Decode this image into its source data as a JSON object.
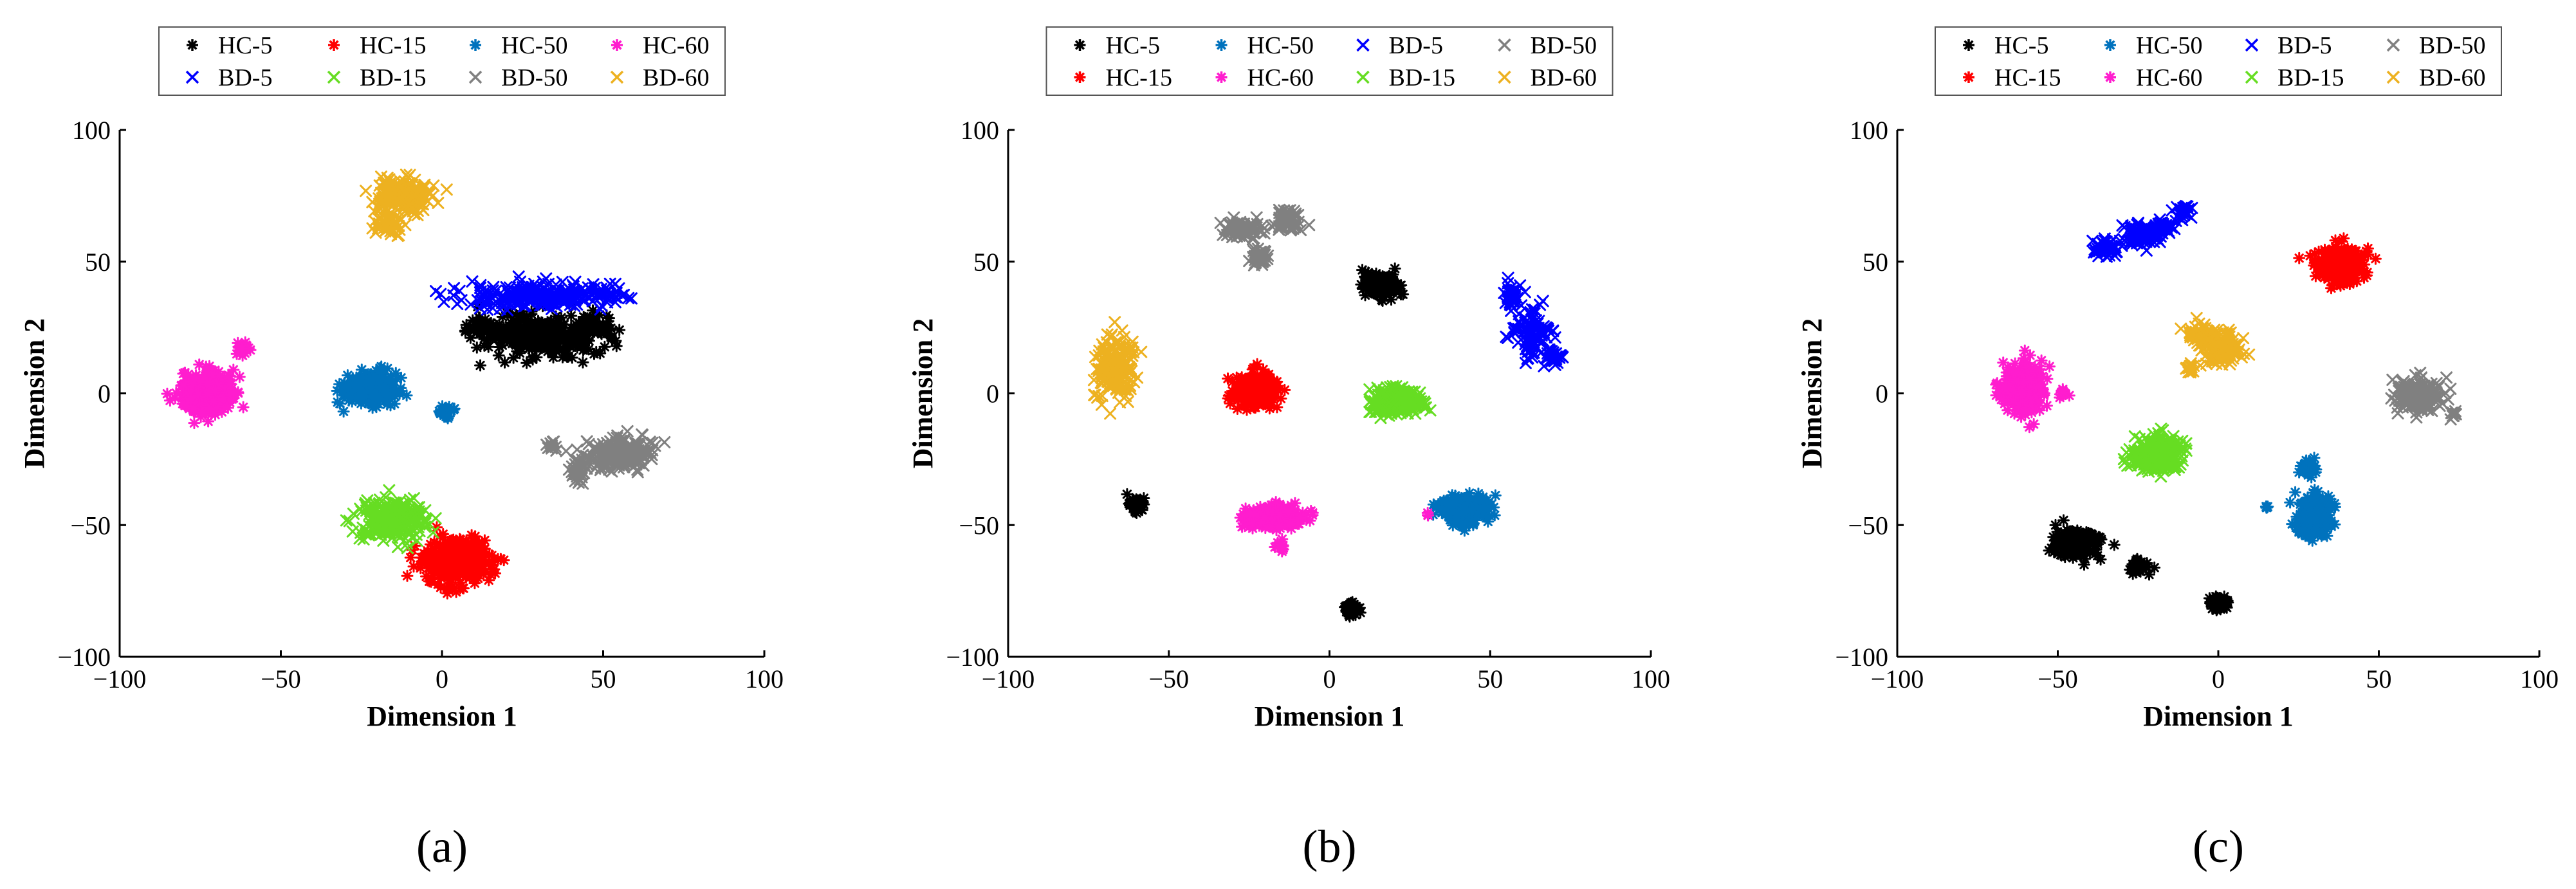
{
  "chart_data": [
    {
      "type": "scatter",
      "panel_label": "(a)",
      "xlabel": "Dimension 1",
      "ylabel": "Dimension 2",
      "xlim": [
        -100,
        100
      ],
      "ylim": [
        -100,
        100
      ],
      "xticks": [
        -100,
        -50,
        0,
        50,
        100
      ],
      "yticks": [
        -100,
        -50,
        0,
        50,
        100
      ],
      "legend_columns": 4,
      "legend_order": [
        "HC-5",
        "HC-15",
        "HC-50",
        "HC-60",
        "BD-5",
        "BD-15",
        "BD-50",
        "BD-60"
      ],
      "series": [
        {
          "name": "HC-5",
          "marker": "asterisk",
          "color": "#000000",
          "clusters": [
            {
              "x": 30,
              "y": 22,
              "sx": 9,
              "sy": 4,
              "n": 320
            },
            {
              "x": 12,
              "y": 25,
              "sx": 2,
              "sy": 2,
              "n": 40
            },
            {
              "x": 48,
              "y": 26,
              "sx": 3,
              "sy": 2,
              "n": 50
            }
          ]
        },
        {
          "name": "HC-15",
          "marker": "asterisk",
          "color": "#FF0000",
          "clusters": [
            {
              "x": 5,
              "y": -63,
              "sx": 5,
              "sy": 4,
              "n": 420
            },
            {
              "x": 2,
              "y": -74,
              "sx": 1,
              "sy": 1,
              "n": 5
            }
          ]
        },
        {
          "name": "HC-50",
          "marker": "asterisk",
          "color": "#0072BD",
          "clusters": [
            {
              "x": -22,
              "y": 2,
              "sx": 4,
              "sy": 3,
              "n": 320
            },
            {
              "x": 1,
              "y": -7,
              "sx": 1.2,
              "sy": 1.2,
              "n": 25
            }
          ]
        },
        {
          "name": "HC-60",
          "marker": "asterisk",
          "color": "#FF1DCE",
          "clusters": [
            {
              "x": -73,
              "y": 0,
              "sx": 4,
              "sy": 4,
              "n": 320
            },
            {
              "x": -62,
              "y": 17,
              "sx": 1.2,
              "sy": 1.2,
              "n": 30
            }
          ]
        },
        {
          "name": "BD-5",
          "marker": "x",
          "color": "#0000FF",
          "clusters": [
            {
              "x": 32,
              "y": 37,
              "sx": 12,
              "sy": 2.5,
              "n": 260
            }
          ]
        },
        {
          "name": "BD-15",
          "marker": "x",
          "color": "#66DD22",
          "clusters": [
            {
              "x": -15,
              "y": -48,
              "sx": 5,
              "sy": 3.5,
              "n": 280
            }
          ]
        },
        {
          "name": "BD-50",
          "marker": "x",
          "color": "#808080",
          "clusters": [
            {
              "x": 55,
              "y": -23,
              "sx": 5,
              "sy": 3,
              "n": 220
            },
            {
              "x": 42,
              "y": -30,
              "sx": 2,
              "sy": 2,
              "n": 40
            },
            {
              "x": 34,
              "y": -20,
              "sx": 1,
              "sy": 1,
              "n": 10
            }
          ]
        },
        {
          "name": "BD-60",
          "marker": "x",
          "color": "#EDB120",
          "clusters": [
            {
              "x": -12,
              "y": 75,
              "sx": 4,
              "sy": 3,
              "n": 200
            },
            {
              "x": -16,
              "y": 64,
              "sx": 2,
              "sy": 2,
              "n": 50
            }
          ]
        }
      ]
    },
    {
      "type": "scatter",
      "panel_label": "(b)",
      "xlabel": "Dimension 1",
      "ylabel": "Dimension 2",
      "xlim": [
        -100,
        100
      ],
      "ylim": [
        -100,
        100
      ],
      "xticks": [
        -100,
        -50,
        0,
        50,
        100
      ],
      "yticks": [
        -100,
        -50,
        0,
        50,
        100
      ],
      "legend_columns": 4,
      "legend_order": [
        "HC-5",
        "HC-50",
        "BD-5",
        "BD-50",
        "HC-15",
        "HC-60",
        "BD-15",
        "BD-60"
      ],
      "series": [
        {
          "name": "HC-5",
          "marker": "asterisk",
          "color": "#000000",
          "clusters": [
            {
              "x": 16,
              "y": 41,
              "sx": 2.5,
              "sy": 2.2,
              "n": 200
            },
            {
              "x": -60,
              "y": -42,
              "sx": 1.3,
              "sy": 1.2,
              "n": 50
            },
            {
              "x": 7,
              "y": -82,
              "sx": 1.3,
              "sy": 1.2,
              "n": 50
            }
          ]
        },
        {
          "name": "HC-15",
          "marker": "asterisk",
          "color": "#FF0000",
          "clusters": [
            {
              "x": -23,
              "y": 1,
              "sx": 3,
              "sy": 3,
              "n": 350
            }
          ]
        },
        {
          "name": "HC-50",
          "marker": "asterisk",
          "color": "#0072BD",
          "clusters": [
            {
              "x": 42,
              "y": -44,
              "sx": 3.5,
              "sy": 2.5,
              "n": 350
            }
          ]
        },
        {
          "name": "HC-60",
          "marker": "asterisk",
          "color": "#FF1DCE",
          "clusters": [
            {
              "x": -17,
              "y": -47,
              "sx": 4,
              "sy": 2,
              "n": 300
            },
            {
              "x": -15,
              "y": -58,
              "sx": 1,
              "sy": 1,
              "n": 10
            },
            {
              "x": 31,
              "y": -46,
              "sx": 0.5,
              "sy": 0.5,
              "n": 3
            }
          ]
        },
        {
          "name": "BD-5",
          "marker": "x",
          "color": "#0000FF",
          "clusters": [
            {
              "x": 57,
              "y": 37,
              "sx": 1.5,
              "sy": 2.5,
              "n": 40
            },
            {
              "x": 63,
              "y": 22,
              "sx": 3,
              "sy": 5,
              "n": 100
            },
            {
              "x": 70,
              "y": 14,
              "sx": 1.2,
              "sy": 1.2,
              "n": 25
            }
          ]
        },
        {
          "name": "BD-15",
          "marker": "x",
          "color": "#66DD22",
          "clusters": [
            {
              "x": 21,
              "y": -3,
              "sx": 3.5,
              "sy": 2.5,
              "n": 300
            }
          ]
        },
        {
          "name": "BD-50",
          "marker": "x",
          "color": "#808080",
          "clusters": [
            {
              "x": -27,
              "y": 62,
              "sx": 3,
              "sy": 2,
              "n": 80
            },
            {
              "x": -13,
              "y": 66,
              "sx": 2,
              "sy": 2,
              "n": 80
            },
            {
              "x": -22,
              "y": 52,
              "sx": 1.5,
              "sy": 1.5,
              "n": 40
            }
          ]
        },
        {
          "name": "BD-60",
          "marker": "x",
          "color": "#EDB120",
          "clusters": [
            {
              "x": -67,
              "y": 9,
              "sx": 3,
              "sy": 6,
              "n": 200
            }
          ]
        }
      ]
    },
    {
      "type": "scatter",
      "panel_label": "(c)",
      "xlabel": "Dimension 1",
      "ylabel": "Dimension 2",
      "xlim": [
        -100,
        100
      ],
      "ylim": [
        -100,
        100
      ],
      "xticks": [
        -100,
        -50,
        0,
        50,
        100
      ],
      "yticks": [
        -100,
        -50,
        0,
        50,
        100
      ],
      "legend_columns": 4,
      "legend_order": [
        "HC-5",
        "HC-50",
        "BD-5",
        "BD-50",
        "HC-15",
        "HC-60",
        "BD-15",
        "BD-60"
      ],
      "series": [
        {
          "name": "HC-5",
          "marker": "asterisk",
          "color": "#000000",
          "clusters": [
            {
              "x": -44,
              "y": -57,
              "sx": 3.5,
              "sy": 2.5,
              "n": 250
            },
            {
              "x": -25,
              "y": -66,
              "sx": 1.5,
              "sy": 1.2,
              "n": 50
            },
            {
              "x": 0,
              "y": -80,
              "sx": 1.3,
              "sy": 1.2,
              "n": 50
            }
          ]
        },
        {
          "name": "HC-15",
          "marker": "asterisk",
          "color": "#FF0000",
          "clusters": [
            {
              "x": 38,
              "y": 49,
              "sx": 3.5,
              "sy": 3,
              "n": 350
            }
          ]
        },
        {
          "name": "HC-50",
          "marker": "asterisk",
          "color": "#0072BD",
          "clusters": [
            {
              "x": 30,
              "y": -47,
              "sx": 2.5,
              "sy": 4,
              "n": 250
            },
            {
              "x": 28,
              "y": -28,
              "sx": 1.2,
              "sy": 2,
              "n": 40
            },
            {
              "x": 15,
              "y": -43,
              "sx": 0.5,
              "sy": 0.5,
              "n": 4
            }
          ]
        },
        {
          "name": "HC-60",
          "marker": "asterisk",
          "color": "#FF1DCE",
          "clusters": [
            {
              "x": -60,
              "y": 2,
              "sx": 3,
              "sy": 5,
              "n": 300
            },
            {
              "x": -48,
              "y": 0,
              "sx": 0.8,
              "sy": 0.8,
              "n": 15
            }
          ]
        },
        {
          "name": "BD-5",
          "marker": "x",
          "color": "#0000FF",
          "clusters": [
            {
              "x": -35,
              "y": 55,
              "sx": 2.5,
              "sy": 1.5,
              "n": 40
            },
            {
              "x": -24,
              "y": 60,
              "sx": 3,
              "sy": 2,
              "n": 80
            },
            {
              "x": -18,
              "y": 63,
              "sx": 2,
              "sy": 1.5,
              "n": 40
            },
            {
              "x": -11,
              "y": 69,
              "sx": 1.5,
              "sy": 1.5,
              "n": 30
            }
          ]
        },
        {
          "name": "BD-15",
          "marker": "x",
          "color": "#66DD22",
          "clusters": [
            {
              "x": -19,
              "y": -23,
              "sx": 4,
              "sy": 3,
              "n": 300
            }
          ]
        },
        {
          "name": "BD-50",
          "marker": "x",
          "color": "#808080",
          "clusters": [
            {
              "x": 62,
              "y": -1,
              "sx": 3.5,
              "sy": 3,
              "n": 180
            },
            {
              "x": 73,
              "y": -8,
              "sx": 0.8,
              "sy": 0.8,
              "n": 10
            }
          ]
        },
        {
          "name": "BD-60",
          "marker": "x",
          "color": "#EDB120",
          "clusters": [
            {
              "x": -6,
              "y": 23,
              "sx": 2,
              "sy": 2,
              "n": 60
            },
            {
              "x": 1,
              "y": 17,
              "sx": 3,
              "sy": 3.5,
              "n": 120
            },
            {
              "x": -9,
              "y": 10,
              "sx": 1,
              "sy": 1,
              "n": 15
            }
          ]
        }
      ]
    }
  ]
}
